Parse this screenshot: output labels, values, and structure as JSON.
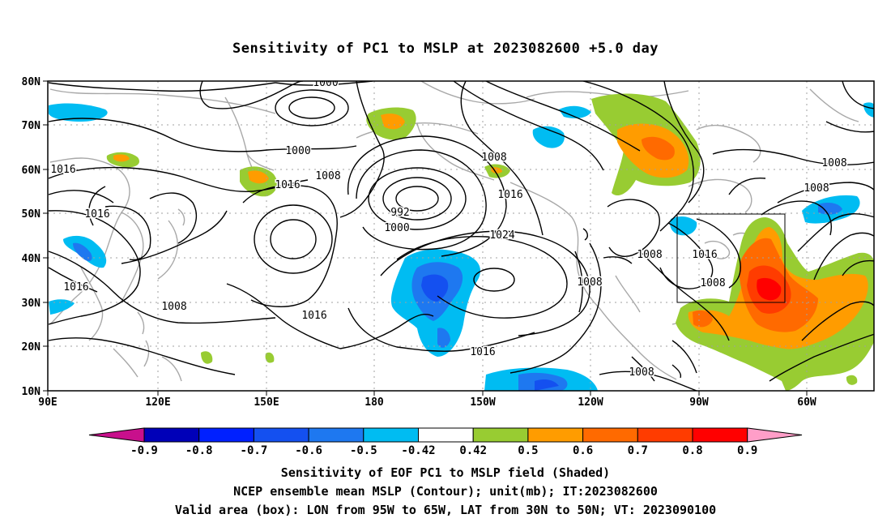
{
  "title": "Sensitivity of PC1 to MSLP at 2023082600 +5.0 day",
  "map": {
    "lon_ticks": [
      "90E",
      "120E",
      "150E",
      "180",
      "150W",
      "120W",
      "90W",
      "60W"
    ],
    "lat_ticks": [
      "80N",
      "70N",
      "60N",
      "50N",
      "40N",
      "30N",
      "20N",
      "10N"
    ],
    "box": {
      "lon_w": "95W",
      "lon_e": "65W",
      "lat_s": "30N",
      "lat_n": "50N"
    },
    "contour_labels": [
      {
        "text": "1000"
      },
      {
        "text": "1000"
      },
      {
        "text": "1008"
      },
      {
        "text": "1008"
      },
      {
        "text": "1016"
      },
      {
        "text": "1016"
      },
      {
        "text": "1016"
      },
      {
        "text": "992"
      },
      {
        "text": "1000"
      },
      {
        "text": "1008"
      },
      {
        "text": "1016"
      },
      {
        "text": "1024"
      },
      {
        "text": "1016"
      },
      {
        "text": "1016"
      },
      {
        "text": "1016"
      },
      {
        "text": "1008"
      },
      {
        "text": "1008"
      },
      {
        "text": "1008"
      },
      {
        "text": "1008"
      },
      {
        "text": "1008"
      },
      {
        "text": "1016"
      },
      {
        "text": "1008"
      }
    ]
  },
  "colorbar": {
    "labels": [
      "-0.9",
      "-0.8",
      "-0.7",
      "-0.6",
      "-0.5",
      "-0.42",
      "0.42",
      "0.5",
      "0.6",
      "0.7",
      "0.8",
      "0.9"
    ],
    "colors": [
      "#0000b8",
      "#0020ff",
      "#1450f0",
      "#1e78f0",
      "#00bcf2",
      "#ffffff",
      "#98cc32",
      "#ff9c00",
      "#ff6a00",
      "#ff3c00",
      "#ff0000"
    ],
    "low_color": "#c8108c",
    "high_color": "#ff9ec8"
  },
  "captions": {
    "line1": "Sensitivity of EOF PC1 to MSLP field (Shaded)",
    "line2": "NCEP ensemble mean MSLP (Contour); unit(mb); IT:2023082600",
    "line3": "Valid area (box): LON from 95W to 65W, LAT from 30N to 50N; VT: 2023090100"
  }
}
